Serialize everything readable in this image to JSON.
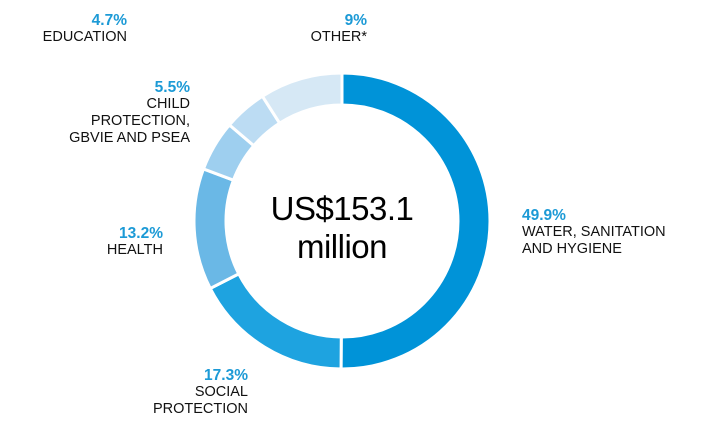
{
  "chart_data": {
    "type": "pie",
    "variant": "donut",
    "center_label": [
      "US$153.1",
      "million"
    ],
    "slices": [
      {
        "label": "WATER, SANITATION AND HYGIENE",
        "value": 49.9,
        "pct_label": "49.9%",
        "color": "#0093d8"
      },
      {
        "label": "SOCIAL PROTECTION",
        "value": 17.3,
        "pct_label": "17.3%",
        "color": "#1ea3e0"
      },
      {
        "label": "HEALTH",
        "value": 13.2,
        "pct_label": "13.2%",
        "color": "#6ab8e6"
      },
      {
        "label": "CHILD PROTECTION, GBVIE AND PSEA",
        "value": 5.5,
        "pct_label": "5.5%",
        "color": "#9ecfef"
      },
      {
        "label": "EDUCATION",
        "value": 4.7,
        "pct_label": "4.7%",
        "color": "#bcdcf3"
      },
      {
        "label": "OTHER*",
        "value": 9,
        "pct_label": "9%",
        "color": "#d6e8f5"
      }
    ]
  }
}
